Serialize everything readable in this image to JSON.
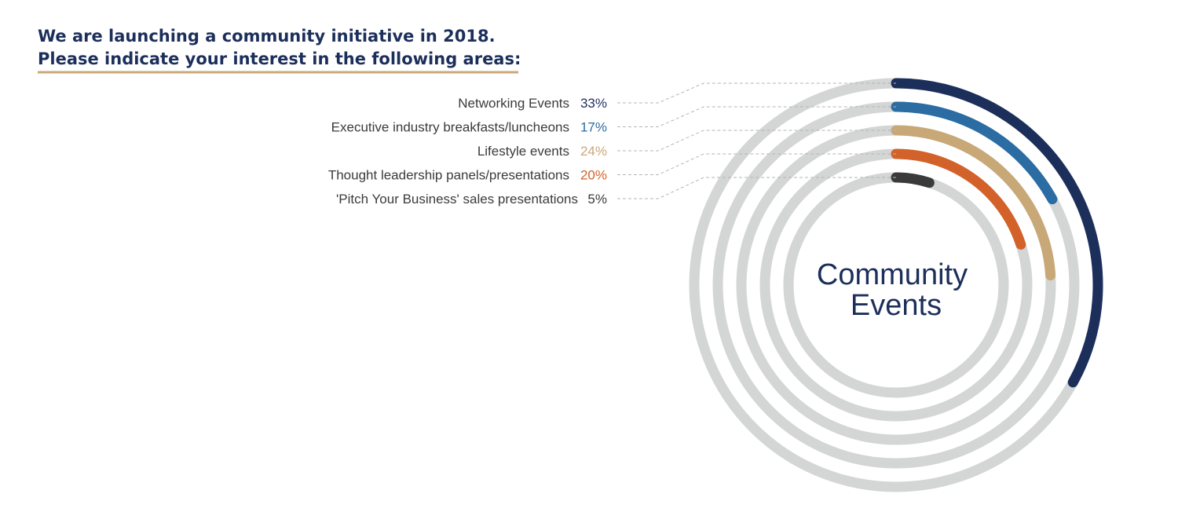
{
  "header": {
    "title_line1": "We are launching a community initiative in 2018.",
    "title_line2": "Please indicate your interest in the following areas:"
  },
  "chart_data": {
    "type": "radial-bar",
    "center_label_line1": "Community",
    "center_label_line2": "Events",
    "track_color": "#d3d6d5",
    "title_color": "#1c2f5b",
    "underline_color": "#c9a878",
    "series": [
      {
        "name": "Networking Events",
        "value": 33,
        "label": "33%",
        "color": "#1c2f5b"
      },
      {
        "name": "Executive industry breakfasts/luncheons",
        "value": 17,
        "label": "17%",
        "color": "#2b6ca3"
      },
      {
        "name": "Lifestyle events",
        "value": 24,
        "label": "24%",
        "color": "#c9a878"
      },
      {
        "name": "Thought leadership panels/presentations",
        "value": 20,
        "label": "20%",
        "color": "#d3622a"
      },
      {
        "name": "'Pitch Your Business' sales presentations",
        "value": 5,
        "label": "5%",
        "color": "#3a3a3a"
      }
    ]
  }
}
